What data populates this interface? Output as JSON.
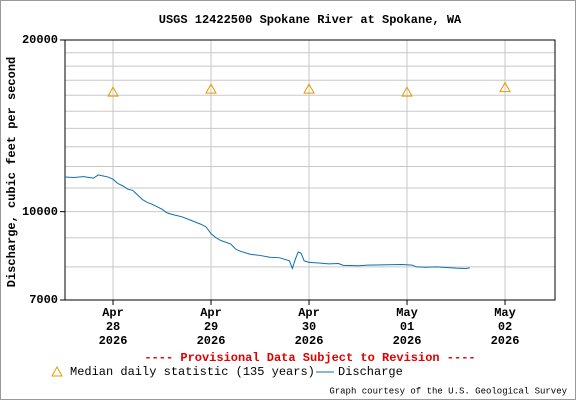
{
  "chart_data": {
    "type": "line",
    "title": "USGS 12422500 Spokane River at Spokane, WA",
    "y_label": "Discharge, cubic feet per second",
    "note": "---- Provisional Data Subject to Revision ----",
    "credit": "Graph courtesy of the U.S. Geological Survey",
    "log_y": true,
    "grid": true,
    "ylim": [
      7000,
      20000
    ],
    "yticks": [
      7000,
      10000,
      20000
    ],
    "ygrid": [
      8000,
      9000,
      10000,
      11000,
      12000,
      13000,
      14000,
      15000,
      16000,
      17000,
      18000,
      19000
    ],
    "xlim": [
      -0.49,
      4.51
    ],
    "xticks": [
      {
        "value": 0,
        "label": [
          "Apr",
          "28",
          "2026"
        ]
      },
      {
        "value": 1,
        "label": [
          "Apr",
          "29",
          "2026"
        ]
      },
      {
        "value": 2,
        "label": [
          "Apr",
          "30",
          "2026"
        ]
      },
      {
        "value": 3,
        "label": [
          "May",
          "01",
          "2026"
        ]
      },
      {
        "value": 4,
        "label": [
          "May",
          "02",
          "2026"
        ]
      }
    ],
    "series": [
      {
        "name": "Median daily statistic (135 years)",
        "color": "#e69a00",
        "marker": "triangle",
        "x": [
          0,
          1,
          2,
          3,
          4
        ],
        "values": [
          16200,
          16400,
          16400,
          16200,
          16500
        ]
      },
      {
        "name": "Discharge",
        "color": "#0a6fb0",
        "marker": "line",
        "x": [
          -0.49,
          -0.4,
          -0.3,
          -0.2,
          -0.15,
          -0.1,
          -0.05,
          0.0,
          0.05,
          0.1,
          0.15,
          0.2,
          0.25,
          0.3,
          0.35,
          0.4,
          0.5,
          0.55,
          0.62,
          0.7,
          0.8,
          0.9,
          0.95,
          1.0,
          1.05,
          1.1,
          1.2,
          1.25,
          1.3,
          1.4,
          1.5,
          1.6,
          1.7,
          1.75,
          1.8,
          1.83,
          1.86,
          1.89,
          1.92,
          1.95,
          2.0,
          2.1,
          2.2,
          2.3,
          2.35,
          2.5,
          2.6,
          2.8,
          2.95,
          3.05,
          3.1,
          3.2,
          3.3,
          3.4,
          3.5,
          3.6,
          3.64
        ],
        "values": [
          11500,
          11480,
          11520,
          11450,
          11600,
          11550,
          11500,
          11400,
          11200,
          11100,
          10950,
          10900,
          10700,
          10500,
          10380,
          10300,
          10100,
          9950,
          9870,
          9800,
          9650,
          9500,
          9400,
          9150,
          9000,
          8900,
          8780,
          8600,
          8520,
          8420,
          8380,
          8320,
          8300,
          8250,
          8200,
          7950,
          8250,
          8500,
          8450,
          8200,
          8150,
          8130,
          8100,
          8110,
          8050,
          8040,
          8060,
          8070,
          8080,
          8060,
          8000,
          7990,
          8000,
          7980,
          7960,
          7950,
          7970
        ]
      }
    ]
  }
}
